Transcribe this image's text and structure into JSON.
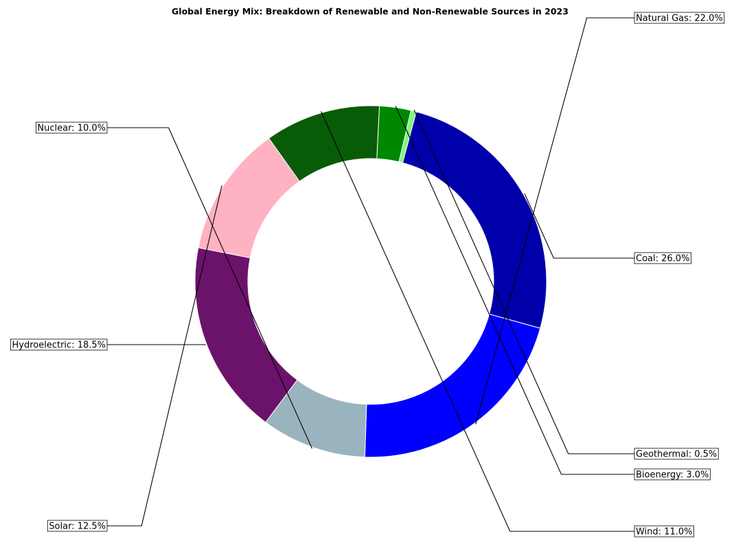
{
  "chart_data": {
    "type": "pie",
    "style": "donut",
    "title": "Global Energy Mix: Breakdown of Renewable and Non-Renewable Sources in 2023",
    "slices": [
      {
        "name": "Coal",
        "value": 26.0,
        "label": "Coal: 26.0%",
        "color": "#0000AA"
      },
      {
        "name": "Natural Gas",
        "value": 22.0,
        "label": "Natural Gas: 22.0%",
        "color": "#0000FF"
      },
      {
        "name": "Nuclear",
        "value": 10.0,
        "label": "Nuclear: 10.0%",
        "color": "#99B4BF"
      },
      {
        "name": "Hydroelectric",
        "value": 18.5,
        "label": "Hydroelectric: 18.5%",
        "color": "#6B136B"
      },
      {
        "name": "Solar",
        "value": 12.5,
        "label": "Solar: 12.5%",
        "color": "#FFB2C1"
      },
      {
        "name": "Wind",
        "value": 11.0,
        "label": "Wind: 11.0%",
        "color": "#085C08"
      },
      {
        "name": "Bioenergy",
        "value": 3.0,
        "label": "Bioenergy: 3.0%",
        "color": "#008800"
      },
      {
        "name": "Geothermal",
        "value": 0.5,
        "label": "Geothermal: 0.5%",
        "color": "#7DFA7D"
      }
    ],
    "legend": "none",
    "grid": false
  }
}
